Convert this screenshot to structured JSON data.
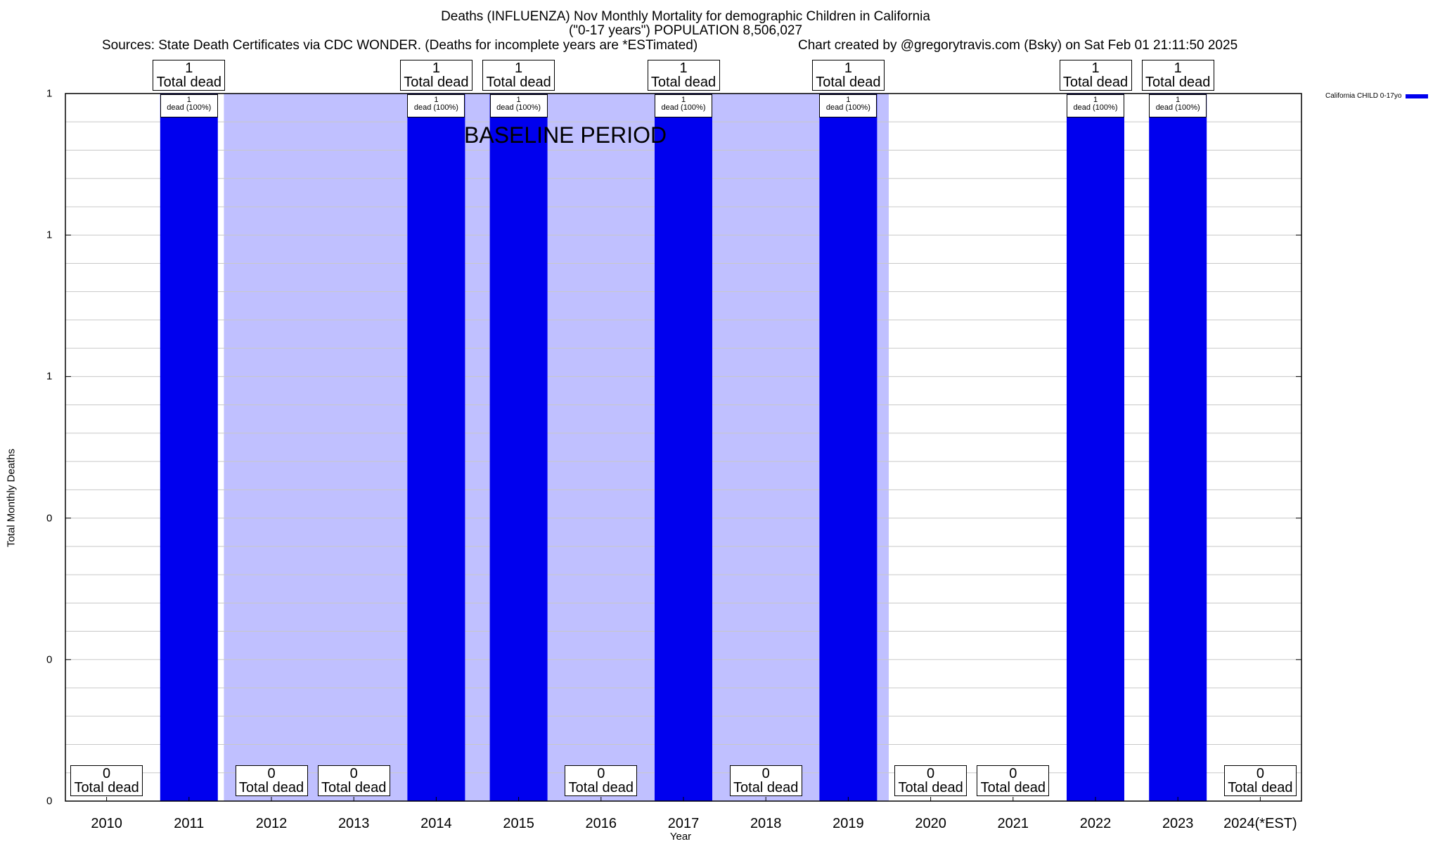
{
  "title": {
    "line1": "Deaths (INFLUENZA) Nov Monthly Mortality for demographic Children in California",
    "line2": "(\"0-17 years\") POPULATION 8,506,027",
    "sources": "Sources: State Death Certificates via CDC WONDER. (Deaths for incomplete years are *ESTimated)",
    "credit": "Chart created by @gregorytravis.com (Bsky) on Sat Feb 01 21:11:50 2025"
  },
  "legend": {
    "label": "California CHILD 0-17yo",
    "color": "#0000ee"
  },
  "chart_data": {
    "type": "bar",
    "categories": [
      "2010",
      "2011",
      "2012",
      "2013",
      "2014",
      "2015",
      "2016",
      "2017",
      "2018",
      "2019",
      "2020",
      "2021",
      "2022",
      "2023",
      "2024(*EST)"
    ],
    "series": [
      {
        "name": "California CHILD 0-17yo",
        "values": [
          0,
          1,
          0,
          0,
          1,
          1,
          0,
          1,
          0,
          1,
          0,
          0,
          1,
          1,
          0
        ]
      }
    ],
    "total_labels": [
      "0",
      "1",
      "0",
      "0",
      "1",
      "1",
      "0",
      "1",
      "0",
      "1",
      "0",
      "0",
      "1",
      "1",
      "0"
    ],
    "total_suffix": "Total dead",
    "bar_labels": [
      "",
      "1",
      "",
      "",
      "1",
      "1",
      "",
      "1",
      "",
      "1",
      "",
      "",
      "1",
      "1",
      ""
    ],
    "bar_label_suffix": "dead (100%)",
    "baseline_period": {
      "from": "2012",
      "to": "2019",
      "label": "BASELINE PERIOD",
      "color": "#c0c0ff"
    },
    "bar_color": "#0000ee",
    "xlabel": "Year",
    "ylabel": "Total Monthly Deaths",
    "ylim": [
      0,
      1
    ],
    "ytick_values": [
      0,
      0.2,
      0.4,
      0.6,
      0.8,
      1.0
    ],
    "ytick_labels": [
      "0",
      "0",
      "0",
      "1",
      "1",
      "1"
    ],
    "grid": true,
    "legend_position": "top-right"
  }
}
